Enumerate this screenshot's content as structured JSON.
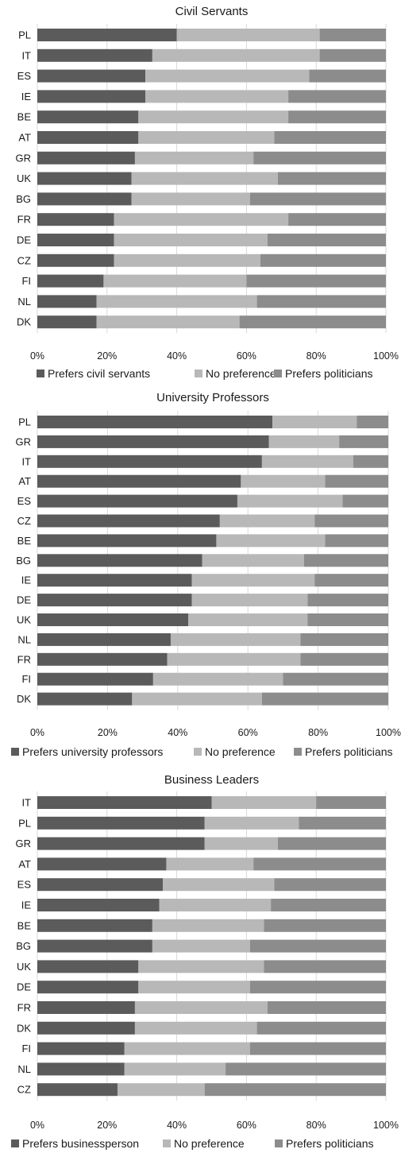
{
  "colors": {
    "dark": "#5b5b5b",
    "light": "#b8b8b8",
    "mid": "#8c8c8c",
    "grid": "#d9d9d9"
  },
  "chart_data": [
    {
      "type": "bar",
      "orientation": "horizontal",
      "stacked": true,
      "title": "Civil Servants",
      "xlim": [
        0,
        100
      ],
      "x_ticks": [
        "0%",
        "20%",
        "40%",
        "60%",
        "80%",
        "100%"
      ],
      "legend_position": "bottom",
      "categories": [
        "PL",
        "IT",
        "ES",
        "IE",
        "BE",
        "AT",
        "GR",
        "UK",
        "BG",
        "FR",
        "DE",
        "CZ",
        "FI",
        "NL",
        "DK"
      ],
      "series": [
        {
          "name": "Prefers civil servants",
          "color": "dark",
          "values": [
            40,
            33,
            31,
            31,
            29,
            29,
            28,
            27,
            27,
            22,
            22,
            22,
            19,
            17,
            17
          ]
        },
        {
          "name": "No preference",
          "color": "light",
          "values": [
            41,
            48,
            47,
            41,
            43,
            39,
            34,
            42,
            34,
            50,
            44,
            42,
            41,
            46,
            41
          ]
        },
        {
          "name": "Prefers politicians",
          "color": "mid",
          "values": [
            19,
            19,
            22,
            28,
            28,
            32,
            38,
            31,
            39,
            28,
            34,
            36,
            40,
            37,
            42
          ]
        }
      ]
    },
    {
      "type": "bar",
      "orientation": "horizontal",
      "stacked": true,
      "title": "University Professors",
      "xlim": [
        0,
        100
      ],
      "x_ticks": [
        "0%",
        "20%",
        "40%",
        "60%",
        "80%",
        "100%"
      ],
      "legend_position": "bottom",
      "categories": [
        "PL",
        "GR",
        "IT",
        "AT",
        "ES",
        "CZ",
        "BE",
        "BG",
        "IE",
        "DE",
        "UK",
        "NL",
        "FR",
        "FI",
        "DK"
      ],
      "series": [
        {
          "name": "Prefers university professors",
          "color": "dark",
          "values": [
            67,
            66,
            64,
            58,
            57,
            52,
            51,
            47,
            44,
            44,
            43,
            38,
            37,
            33,
            27
          ]
        },
        {
          "name": "No preference",
          "color": "light",
          "values": [
            24,
            20,
            26,
            24,
            30,
            27,
            31,
            29,
            35,
            33,
            34,
            37,
            38,
            37,
            37
          ]
        },
        {
          "name": "Prefers politicians",
          "color": "mid",
          "values": [
            9,
            14,
            10,
            18,
            13,
            21,
            18,
            24,
            21,
            23,
            23,
            25,
            25,
            30,
            36
          ]
        }
      ]
    },
    {
      "type": "bar",
      "orientation": "horizontal",
      "stacked": true,
      "title": "Business Leaders",
      "xlim": [
        0,
        100
      ],
      "x_ticks": [
        "0%",
        "20%",
        "40%",
        "60%",
        "80%",
        "100%"
      ],
      "legend_position": "bottom",
      "categories": [
        "IT",
        "PL",
        "GR",
        "AT",
        "ES",
        "IE",
        "BE",
        "BG",
        "UK",
        "DE",
        "FR",
        "DK",
        "FI",
        "NL",
        "CZ"
      ],
      "series": [
        {
          "name": "Prefers businessperson",
          "color": "dark",
          "values": [
            50,
            48,
            48,
            37,
            36,
            35,
            33,
            33,
            29,
            29,
            28,
            28,
            25,
            25,
            23
          ]
        },
        {
          "name": "No preference",
          "color": "light",
          "values": [
            30,
            27,
            21,
            25,
            32,
            32,
            32,
            28,
            36,
            32,
            38,
            35,
            36,
            29,
            25
          ]
        },
        {
          "name": "Prefers politicians",
          "color": "mid",
          "values": [
            20,
            25,
            31,
            38,
            32,
            33,
            35,
            39,
            35,
            39,
            34,
            37,
            39,
            46,
            52
          ]
        }
      ]
    }
  ]
}
